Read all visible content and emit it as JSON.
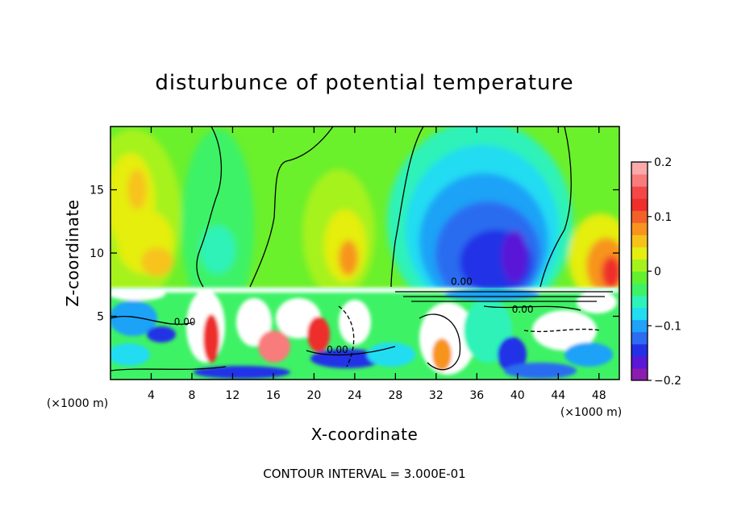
{
  "chart_data": {
    "type": "heatmap",
    "title": "disturbunce of potential temperature",
    "xlabel": "X-coordinate",
    "ylabel": "Z-coordinate",
    "x_unit": "(×1000 m)",
    "y_unit": "(×1000 m)",
    "xlim": [
      0,
      50
    ],
    "ylim": [
      0,
      20
    ],
    "x_ticks": [
      4,
      8,
      12,
      16,
      20,
      24,
      28,
      32,
      36,
      40,
      44,
      48
    ],
    "y_ticks": [
      5,
      10,
      15
    ],
    "colorbar": {
      "vmin": -0.2,
      "vmax": 0.2,
      "ticks": [
        {
          "value": 0.2,
          "label": "0.2"
        },
        {
          "value": 0.1,
          "label": "0.1"
        },
        {
          "value": 0.0,
          "label": "0"
        },
        {
          "value": -0.1,
          "label": "−0.1"
        },
        {
          "value": -0.2,
          "label": "−0.2"
        }
      ]
    },
    "contour_labels": [
      {
        "text": "0.00",
        "x": 34.5,
        "z": 7.5
      },
      {
        "text": "0.00",
        "x": 40.5,
        "z": 5.3
      },
      {
        "text": "0.00",
        "x": 7.3,
        "z": 4.3
      },
      {
        "text": "0.00",
        "x": 22.3,
        "z": 2.1
      }
    ],
    "grid": false,
    "legend": "colorbar-right",
    "footer": "CONTOUR INTERVAL = 3.000E-01"
  },
  "colors": {
    "palette": [
      "#8a1cb0",
      "#5a17d6",
      "#2430e6",
      "#2c6cf0",
      "#1fa2f7",
      "#22dcf2",
      "#2ef2b8",
      "#3ef266",
      "#63f02e",
      "#a6f21c",
      "#e5ee11",
      "#f7c31b",
      "#f7941f",
      "#f2612a",
      "#ee2f2a",
      "#f44848",
      "#f87c7c",
      "#fba9a9"
    ]
  }
}
